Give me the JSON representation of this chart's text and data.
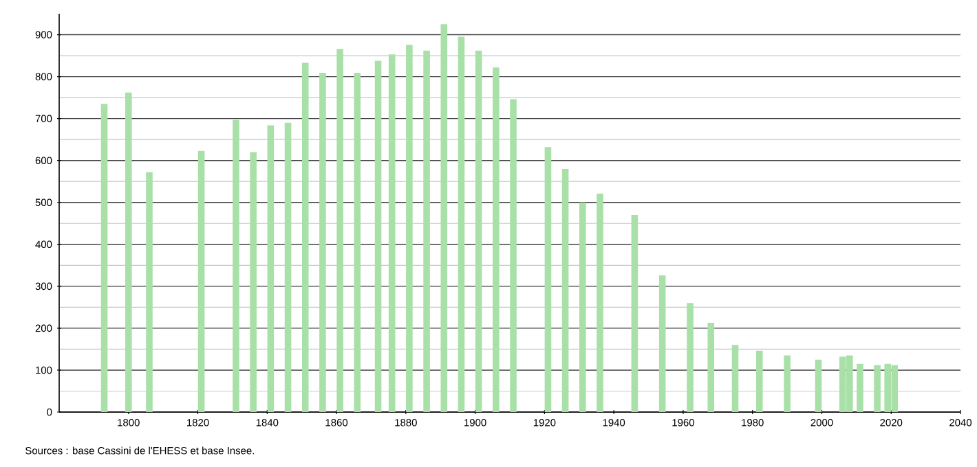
{
  "chart_data": {
    "type": "bar",
    "x": [
      1793,
      1800,
      1806,
      1821,
      1831,
      1836,
      1841,
      1846,
      1851,
      1856,
      1861,
      1866,
      1872,
      1876,
      1881,
      1886,
      1891,
      1896,
      1901,
      1906,
      1911,
      1921,
      1926,
      1931,
      1936,
      1946,
      1954,
      1962,
      1968,
      1975,
      1982,
      1990,
      1999,
      2006,
      2008,
      2011,
      2016,
      2019,
      2021
    ],
    "values": [
      735,
      762,
      572,
      623,
      697,
      620,
      684,
      690,
      833,
      809,
      866,
      809,
      838,
      853,
      876,
      862,
      925,
      895,
      862,
      822,
      746,
      632,
      580,
      500,
      521,
      470,
      326,
      260,
      213,
      160,
      146,
      135,
      125,
      132,
      135,
      115,
      112,
      115,
      112
    ],
    "color": "#a8e0a8",
    "xlim": [
      1780,
      2040
    ],
    "xticks": [
      1800,
      1820,
      1840,
      1860,
      1880,
      1900,
      1920,
      1940,
      1960,
      1980,
      2000,
      2020,
      2040
    ],
    "ylim": [
      0,
      950
    ],
    "yticks": [
      0,
      100,
      200,
      300,
      400,
      500,
      600,
      700,
      800,
      900
    ],
    "grid": "y",
    "annotations": [
      "Sources : base Cassini de l'EHESS et base Insee."
    ]
  }
}
